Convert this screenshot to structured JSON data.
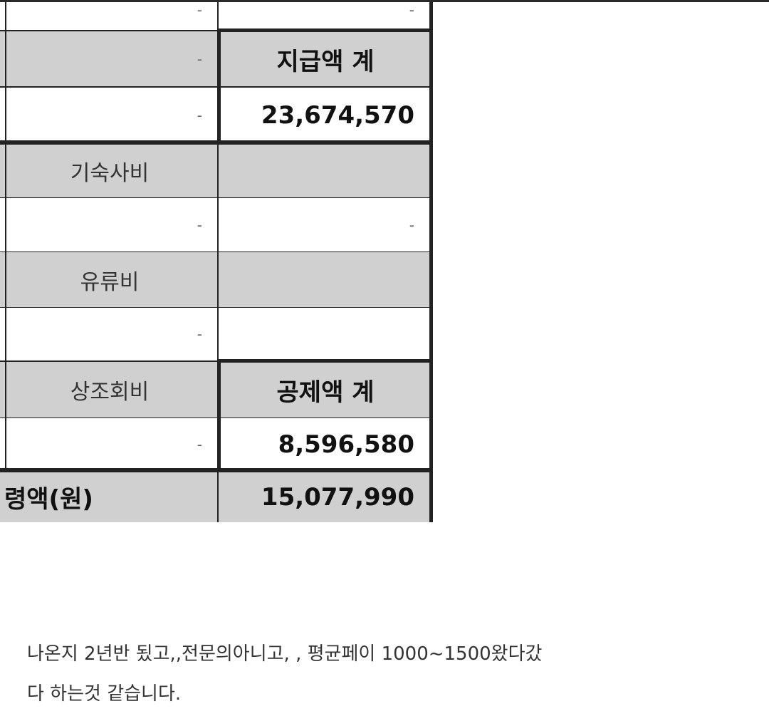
{
  "table": {
    "rows": [
      {
        "left": "-",
        "right": "-"
      },
      {
        "left": "-",
        "right": "지급액 계"
      },
      {
        "left": "-",
        "right": "23,674,570"
      },
      {
        "left": "기숙사비",
        "right": ""
      },
      {
        "left": "-",
        "right": "-"
      },
      {
        "left": "유류비",
        "right": ""
      },
      {
        "left": "-",
        "right": ""
      },
      {
        "left": "상조회비",
        "right": "공제액 계"
      },
      {
        "left": "-",
        "right": "8,596,580"
      },
      {
        "left": "령액(원)",
        "right": "15,077,990"
      }
    ]
  },
  "post": {
    "line1": "나온지 2년반 됬고,,전문의아니고, , 평균페이 1000~1500왔다갔",
    "line2": "다 하는것 같습니다."
  }
}
